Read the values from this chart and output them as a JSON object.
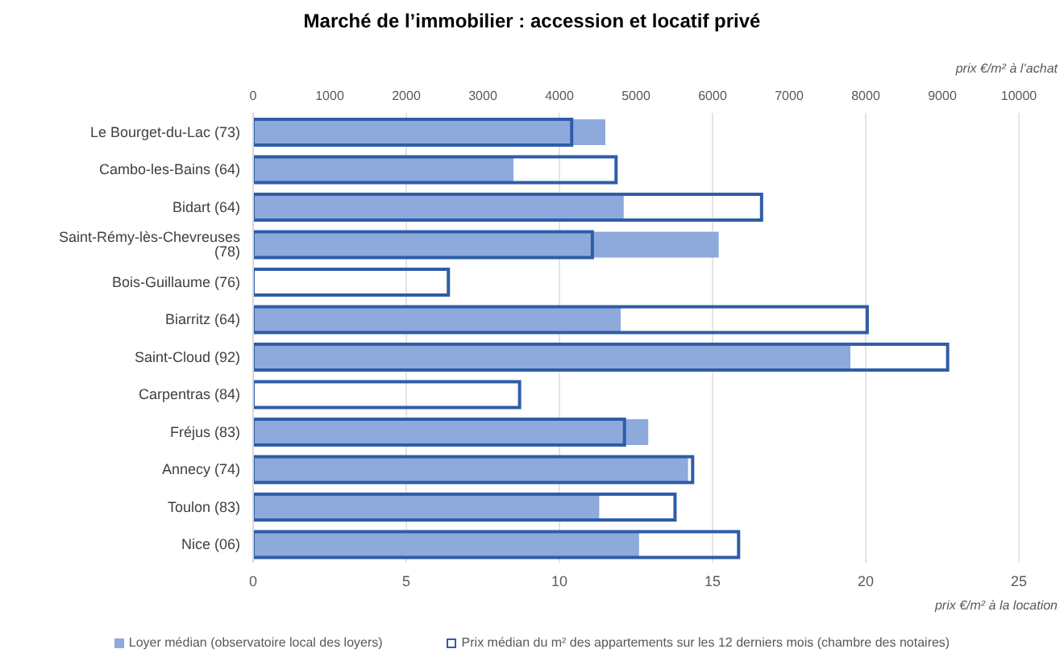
{
  "chart_data": {
    "type": "bar",
    "orientation": "horizontal",
    "title": "Marché de l’immobilier : accession et locatif privé",
    "categories": [
      "Le Bourget-du-Lac (73)",
      "Cambo-les-Bains (64)",
      "Bidart (64)",
      "Saint-Rémy-lès-Chevreuses (78)",
      "Bois-Guillaume (76)",
      "Biarritz (64)",
      "Saint-Cloud (92)",
      "Carpentras (84)",
      "Fréjus (83)",
      "Annecy (74)",
      "Toulon (83)",
      "Nice (06)"
    ],
    "series": [
      {
        "name": "Loyer médian  (observatoire local des loyers)",
        "color": "#8ea9db",
        "values": [
          11.5,
          8.5,
          12.1,
          15.2,
          null,
          12.0,
          19.5,
          null,
          12.9,
          14.2,
          11.3,
          12.6
        ]
      },
      {
        "name": "Prix médian du m² des appartements sur les 12 derniers mois (chambre des notaires)",
        "color": "#2e5da8",
        "axis": "x2",
        "values": [
          4160,
          4740,
          6640,
          4430,
          2550,
          8020,
          9070,
          3480,
          4850,
          5740,
          5510,
          6340
        ]
      }
    ],
    "xlim": [
      0,
      25
    ],
    "xticks": [
      0,
      5,
      10,
      15,
      20,
      25
    ],
    "xlabel": "prix €/m² à la location",
    "x2lim": [
      0,
      10000
    ],
    "x2ticks": [
      0,
      1000,
      2000,
      3000,
      4000,
      5000,
      6000,
      7000,
      8000,
      9000,
      10000
    ],
    "x2label": "prix €/m² à l’achat",
    "grid": "x",
    "legend": "bottom"
  }
}
